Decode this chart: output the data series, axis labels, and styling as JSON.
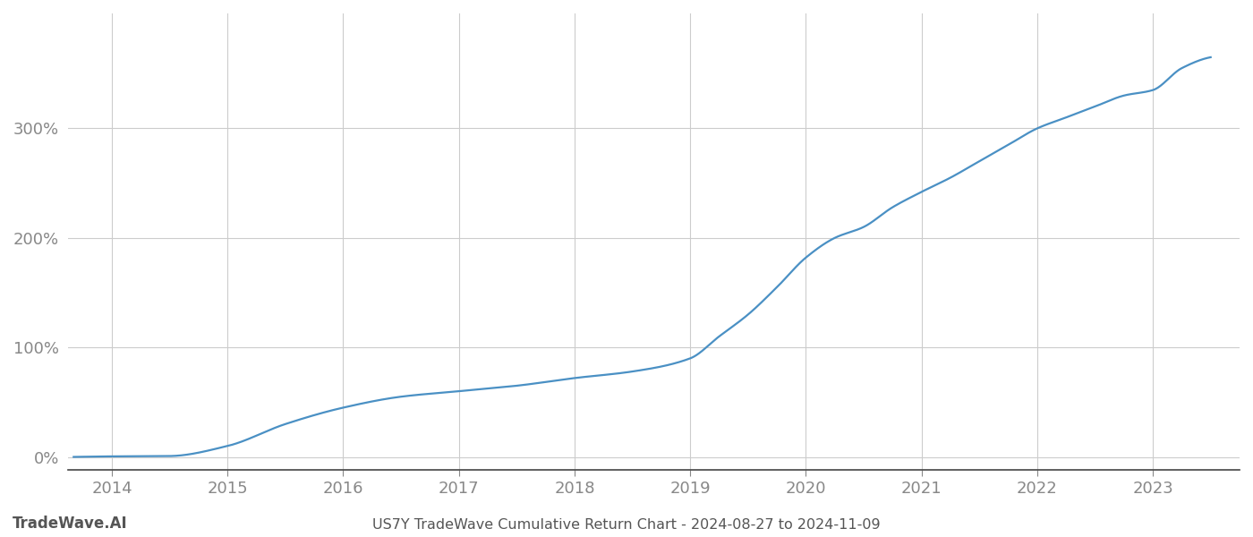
{
  "title": "US7Y TradeWave Cumulative Return Chart - 2024-08-27 to 2024-11-09",
  "watermark": "TradeWave.AI",
  "line_color": "#4a90c4",
  "background_color": "#ffffff",
  "grid_color": "#cccccc",
  "tick_label_color": "#888888",
  "title_color": "#555555",
  "watermark_color": "#555555",
  "xlim_start": 2013.62,
  "xlim_end": 2023.75,
  "ylim_min": -0.12,
  "ylim_max": 4.05,
  "ytick_positions": [
    0.0,
    1.0,
    2.0,
    3.0
  ],
  "ytick_labels": [
    "0%",
    "100%",
    "200%",
    "300%"
  ],
  "xtick_years": [
    2014,
    2015,
    2016,
    2017,
    2018,
    2019,
    2020,
    2021,
    2022,
    2023
  ],
  "anchors_x": [
    2013.67,
    2014.0,
    2014.5,
    2015.0,
    2015.5,
    2016.0,
    2016.5,
    2017.0,
    2017.5,
    2018.0,
    2018.5,
    2019.0,
    2019.25,
    2019.5,
    2019.75,
    2020.0,
    2020.25,
    2020.5,
    2020.75,
    2021.0,
    2021.25,
    2021.5,
    2021.75,
    2022.0,
    2022.25,
    2022.5,
    2022.75,
    2023.0,
    2023.25,
    2023.5
  ],
  "anchors_y": [
    0.0,
    0.005,
    0.008,
    0.1,
    0.3,
    0.45,
    0.55,
    0.6,
    0.65,
    0.72,
    0.78,
    0.9,
    1.1,
    1.3,
    1.55,
    1.82,
    2.0,
    2.1,
    2.28,
    2.42,
    2.55,
    2.7,
    2.85,
    3.0,
    3.1,
    3.2,
    3.3,
    3.35,
    3.55,
    3.65
  ],
  "line_width": 1.6
}
